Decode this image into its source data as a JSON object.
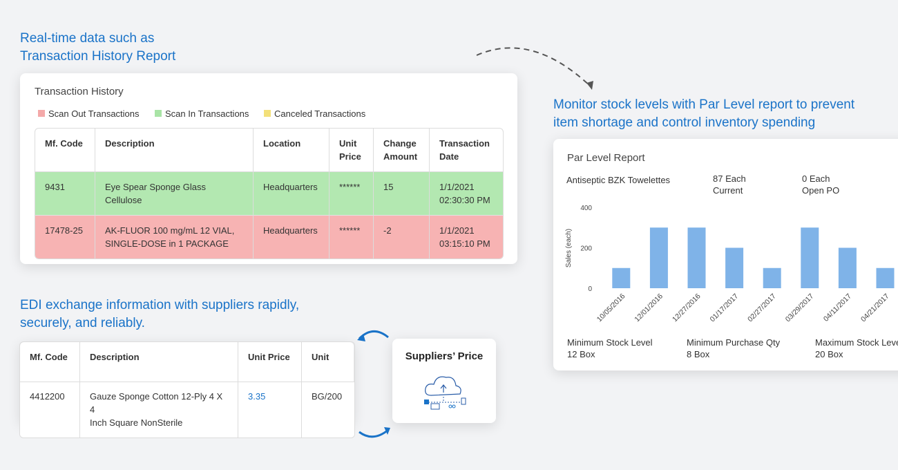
{
  "headings": {
    "transaction": [
      "Real-time data such as",
      "Transaction History Report"
    ],
    "par_level": [
      "Monitor stock levels with Par Level report to prevent",
      "item shortage and control inventory spending"
    ],
    "edi": [
      "EDI exchange information with suppliers rapidly,",
      "securely, and reliably."
    ]
  },
  "transaction_history": {
    "title": "Transaction History",
    "legend": [
      {
        "label": "Scan Out Transactions",
        "color": "#f4a9a9"
      },
      {
        "label": "Scan In Transactions",
        "color": "#a9e4a6"
      },
      {
        "label": "Canceled Transactions",
        "color": "#f3e07a"
      }
    ],
    "columns": [
      "Mf. Code",
      "Description",
      "Location",
      "Unit\nPrice",
      "Change\nAmount",
      "Transaction\nDate"
    ],
    "rows": [
      [
        "9431",
        "Eye Spear Sponge Glass Cellulose",
        "Headquarters",
        "******",
        "15",
        "1/1/2021\n02:30:30 PM"
      ],
      [
        "17478-25",
        "AK-FLUOR 100 mg/mL 12 VIAL,\nSINGLE-DOSE in 1 PACKAGE",
        "Headquarters",
        "******",
        "-2",
        "1/1/2021\n03:15:10 PM"
      ]
    ],
    "row_colors": [
      "#b3e8b1",
      "#f7b3b3"
    ]
  },
  "edi_table": {
    "columns": [
      "Mf. Code",
      "Description",
      "Unit Price",
      "Unit"
    ],
    "rows": [
      [
        "4412200",
        "Gauze Sponge Cotton 12-Ply 4 X 4\nInch Square NonSterile",
        "3.35",
        "BG/200"
      ]
    ]
  },
  "suppliers": {
    "title": "Suppliers’ Price"
  },
  "par_level": {
    "title": "Par Level Report",
    "item": "Antiseptic BZK Towelettes",
    "stats": [
      {
        "value": "87 Each",
        "label": "Current"
      },
      {
        "value": "0 Each",
        "label": "Open PO"
      }
    ],
    "chart": {
      "type": "bar",
      "y_label": "Sales (each)",
      "categories": [
        "10/05/2016",
        "12/01/2016",
        "12/27/2016",
        "01/17/2017",
        "02/27/2017",
        "03/29/2017",
        "04/11/2017",
        "04/21/2017"
      ],
      "values": [
        100,
        300,
        300,
        200,
        100,
        300,
        200,
        100
      ],
      "color": "#7fb3e8",
      "ylim": [
        0,
        400
      ],
      "yticks": [
        0,
        200,
        400
      ]
    },
    "footer": [
      {
        "label": "Minimum Stock Level",
        "value": "12 Box"
      },
      {
        "label": "Minimum Purchase Qty",
        "value": "8 Box"
      },
      {
        "label": "Maximum Stock Level",
        "value": "20 Box"
      }
    ]
  }
}
